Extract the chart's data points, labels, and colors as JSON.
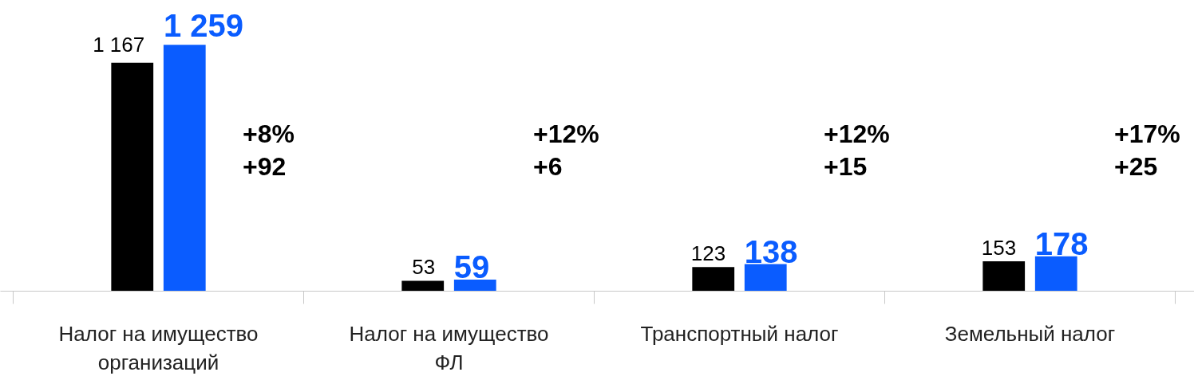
{
  "chart_data": {
    "type": "bar",
    "categories": [
      "Налог на имущество организаций",
      "Налог на имущество ФЛ",
      "Транспортный налог",
      "Земельный налог"
    ],
    "series": [
      {
        "color": "#000000",
        "values": [
          1167,
          53,
          123,
          153
        ],
        "value_labels": [
          "1 167",
          "53",
          "123",
          "153"
        ]
      },
      {
        "color": "#0a5cff",
        "values": [
          1259,
          59,
          138,
          178
        ],
        "value_labels": [
          "1 259",
          "59",
          "138",
          "178"
        ]
      }
    ],
    "annotations": [
      "+8%",
      "+92",
      "+12%",
      "+6",
      "+12%",
      "+15",
      "+17%",
      "+25"
    ],
    "grid": false
  }
}
